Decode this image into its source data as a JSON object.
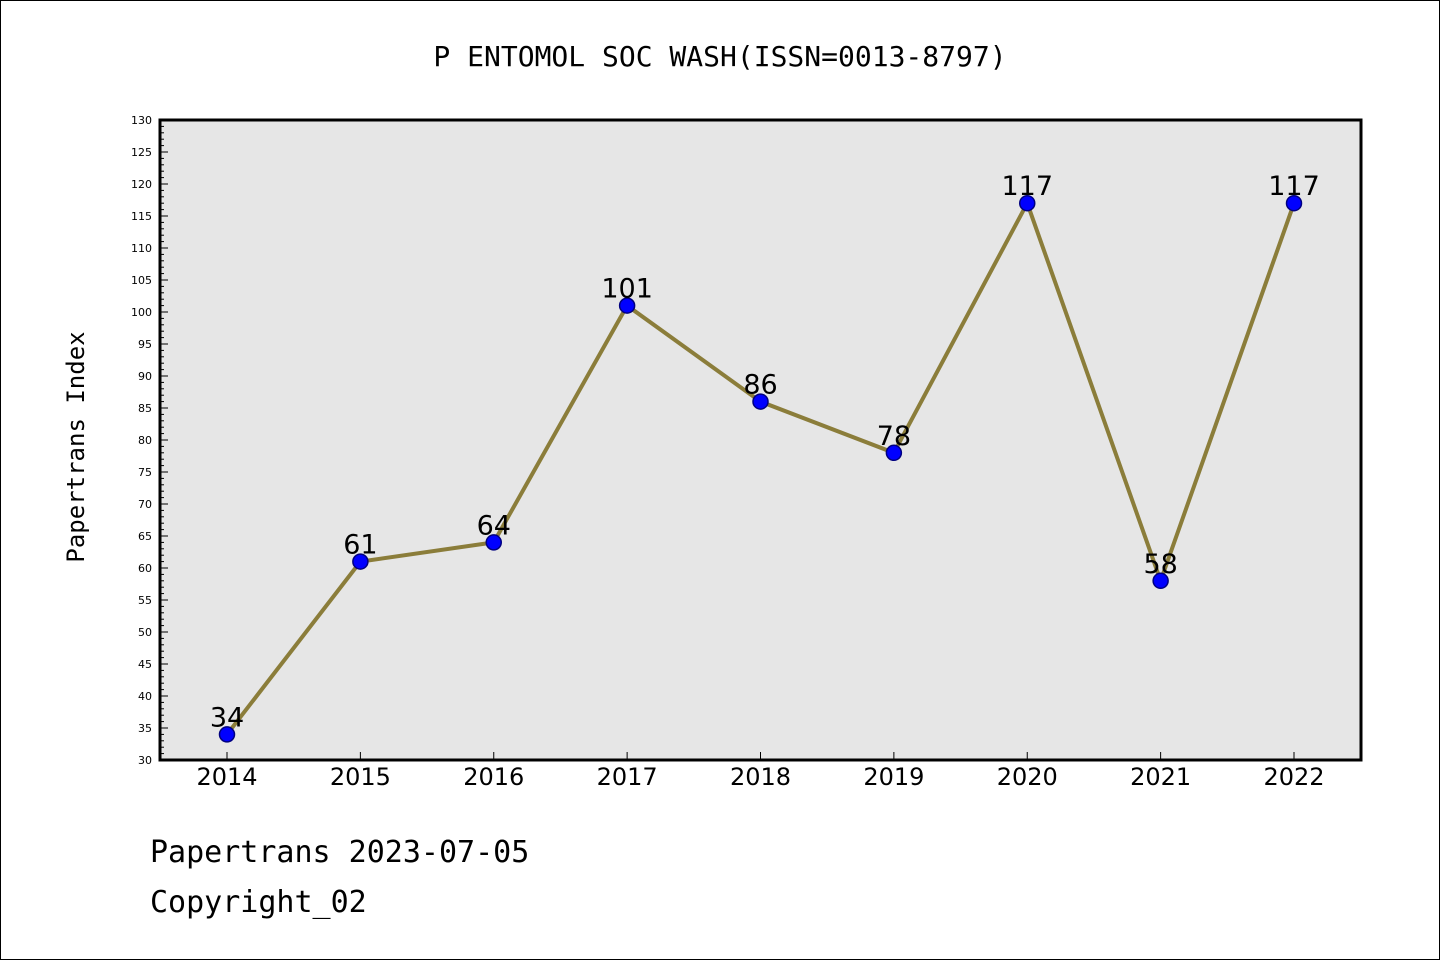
{
  "chart_data": {
    "type": "line",
    "title": "P ENTOMOL SOC WASH(ISSN=0013-8797)",
    "xlabel": "",
    "ylabel": "Papertrans Index",
    "categories": [
      "2014",
      "2015",
      "2016",
      "2017",
      "2018",
      "2019",
      "2020",
      "2021",
      "2022"
    ],
    "series": [
      {
        "values": [
          34,
          61,
          64,
          101,
          86,
          78,
          117,
          58,
          117
        ]
      }
    ],
    "data_labels": [
      "34",
      "61",
      "64",
      "101",
      "86",
      "78",
      "117",
      "58",
      "117"
    ],
    "ylim": [
      30,
      130
    ],
    "y_major_step": 5,
    "y_tick_labels": [
      "30",
      "35",
      "40",
      "45",
      "50",
      "55",
      "60",
      "65",
      "70",
      "75",
      "80",
      "85",
      "90",
      "95",
      "100",
      "105",
      "110",
      "115",
      "120",
      "125",
      "130"
    ],
    "grid": false,
    "legend": "none",
    "colors": {
      "plot_background": "#e6e6e6",
      "line": "#8b7d3a",
      "marker_fill": "#0000ff",
      "marker_stroke": "#000080"
    }
  },
  "footer": {
    "line1": "Papertrans 2023-07-05",
    "line2": "Copyright_02"
  }
}
